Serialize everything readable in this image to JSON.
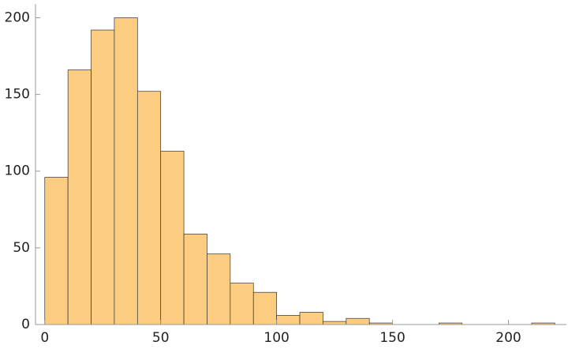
{
  "chart_data": {
    "type": "histogram",
    "bins": [
      0,
      10,
      20,
      30,
      40,
      50,
      60,
      70,
      80,
      90,
      100,
      110,
      120,
      130,
      140,
      150,
      160,
      170,
      180,
      190,
      200,
      210,
      220
    ],
    "values": [
      96,
      166,
      192,
      200,
      152,
      113,
      59,
      46,
      27,
      21,
      6,
      8,
      2,
      4,
      1,
      0,
      0,
      1,
      0,
      0,
      0,
      1
    ],
    "color": "#fccd80",
    "xlim": [
      -4,
      225
    ],
    "xticks": [
      0,
      50,
      100,
      150,
      200
    ],
    "ylim": [
      0,
      209
    ],
    "yticks": [
      0,
      50,
      100,
      150,
      200
    ]
  }
}
